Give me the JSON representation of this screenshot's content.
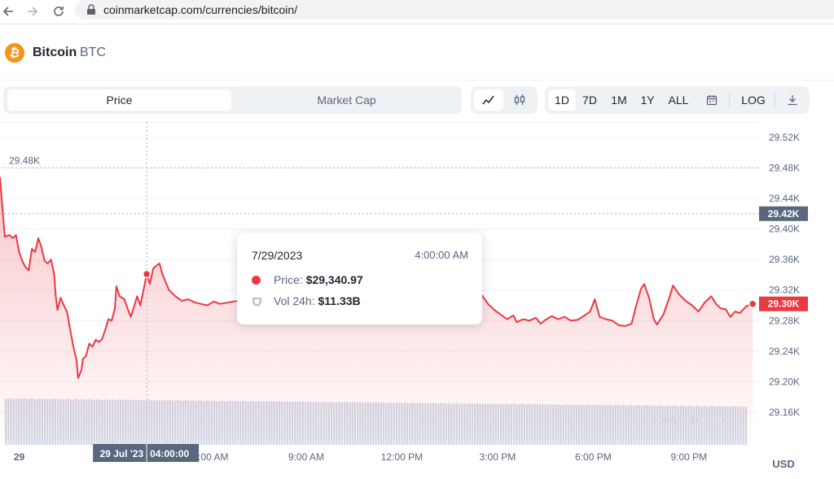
{
  "browser": {
    "url": "coinmarketcap.com/currencies/bitcoin/",
    "back_icon": "arrow-left-icon",
    "forward_icon": "arrow-right-icon",
    "reload_icon": "reload-icon",
    "lock_icon": "lock-icon"
  },
  "coin": {
    "name": "Bitcoin",
    "symbol": "BTC",
    "logo_icon": "bitcoin-logo-icon",
    "brand_color": "#f7931a"
  },
  "tabs": [
    {
      "label": "Price",
      "active": true
    },
    {
      "label": "Market Cap",
      "active": false
    }
  ],
  "chart_type_buttons": [
    {
      "icon": "line-chart-icon",
      "active": true
    },
    {
      "icon": "candlestick-icon",
      "active": false
    }
  ],
  "ranges": [
    {
      "label": "1D",
      "active": true
    },
    {
      "label": "7D",
      "active": false
    },
    {
      "label": "1M",
      "active": false
    },
    {
      "label": "1Y",
      "active": false
    },
    {
      "label": "ALL",
      "active": false
    }
  ],
  "calendar_icon": "calendar-icon",
  "log_label": "LOG",
  "download_icon": "download-icon",
  "tooltip": {
    "date": "7/29/2023",
    "time": "4:00:00 AM",
    "price_label": "Price:",
    "price_value": "$29,340.97",
    "vol_label": "Vol 24h:",
    "vol_value": "$11.33B"
  },
  "chart_data": {
    "type": "line",
    "currency": "USD",
    "watermark": "CoinMarketCap",
    "ylim": [
      29125,
      29540
    ],
    "y_ticks": [
      "29.52K",
      "29.48K",
      "29.44K",
      "29.40K",
      "29.36K",
      "29.32K",
      "29.28K",
      "29.24K",
      "29.20K",
      "29.16K"
    ],
    "x_ticks": [
      "29",
      "6:00 AM",
      "9:00 AM",
      "12:00 PM",
      "3:00 PM",
      "6:00 PM",
      "9:00 PM"
    ],
    "x_tick_hours": [
      0,
      6,
      9,
      12,
      15,
      18,
      21
    ],
    "x_range_hours": [
      -0.6,
      23.2
    ],
    "high_label": "29.48K",
    "high_value": 29480,
    "crosshair_label": "29.42K",
    "crosshair_value": 29420,
    "last_price_label": "29.30K",
    "last_price_value": 29302,
    "hover_date_label": "29 Jul '23",
    "hover_time_label": "04:00:00",
    "hover_hour": 4.0,
    "hover_price": 29340.97,
    "line_color": "#ea3943",
    "volume_color": "#cfd6e4",
    "price_series": [
      [
        -0.6,
        29468
      ],
      [
        -0.55,
        29440
      ],
      [
        -0.45,
        29390
      ],
      [
        -0.3,
        29392
      ],
      [
        -0.2,
        29388
      ],
      [
        -0.1,
        29392
      ],
      [
        0.0,
        29370
      ],
      [
        0.1,
        29358
      ],
      [
        0.2,
        29350
      ],
      [
        0.3,
        29346
      ],
      [
        0.4,
        29374
      ],
      [
        0.5,
        29370
      ],
      [
        0.55,
        29378
      ],
      [
        0.6,
        29388
      ],
      [
        0.7,
        29376
      ],
      [
        0.8,
        29358
      ],
      [
        0.9,
        29355
      ],
      [
        1.0,
        29360
      ],
      [
        1.1,
        29340
      ],
      [
        1.15,
        29312
      ],
      [
        1.2,
        29294
      ],
      [
        1.3,
        29310
      ],
      [
        1.4,
        29300
      ],
      [
        1.5,
        29292
      ],
      [
        1.6,
        29268
      ],
      [
        1.7,
        29246
      ],
      [
        1.8,
        29228
      ],
      [
        1.85,
        29205
      ],
      [
        1.95,
        29215
      ],
      [
        2.0,
        29230
      ],
      [
        2.1,
        29234
      ],
      [
        2.2,
        29250
      ],
      [
        2.3,
        29246
      ],
      [
        2.4,
        29255
      ],
      [
        2.5,
        29252
      ],
      [
        2.6,
        29256
      ],
      [
        2.7,
        29268
      ],
      [
        2.8,
        29282
      ],
      [
        2.9,
        29280
      ],
      [
        3.0,
        29296
      ],
      [
        3.05,
        29325
      ],
      [
        3.15,
        29312
      ],
      [
        3.3,
        29308
      ],
      [
        3.4,
        29296
      ],
      [
        3.5,
        29285
      ],
      [
        3.6,
        29298
      ],
      [
        3.7,
        29312
      ],
      [
        3.8,
        29300
      ],
      [
        3.9,
        29320
      ],
      [
        4.0,
        29340.97
      ],
      [
        4.1,
        29328
      ],
      [
        4.2,
        29348
      ],
      [
        4.3,
        29352
      ],
      [
        4.4,
        29355
      ],
      [
        4.5,
        29340
      ],
      [
        4.6,
        29330
      ],
      [
        4.7,
        29320
      ],
      [
        4.9,
        29312
      ],
      [
        5.1,
        29306
      ],
      [
        5.3,
        29308
      ],
      [
        5.5,
        29304
      ],
      [
        5.7,
        29302
      ],
      [
        5.9,
        29300
      ],
      [
        6.1,
        29305
      ],
      [
        6.3,
        29302
      ],
      [
        12.8,
        29350
      ],
      [
        13.0,
        29345
      ],
      [
        13.2,
        29340
      ],
      [
        13.35,
        29330
      ],
      [
        13.5,
        29328
      ],
      [
        13.7,
        29322
      ],
      [
        13.8,
        29306
      ],
      [
        13.95,
        29318
      ],
      [
        14.1,
        29313
      ],
      [
        14.3,
        29308
      ],
      [
        14.5,
        29314
      ],
      [
        14.7,
        29302
      ],
      [
        14.9,
        29294
      ],
      [
        15.1,
        29288
      ],
      [
        15.3,
        29282
      ],
      [
        15.5,
        29287
      ],
      [
        15.6,
        29278
      ],
      [
        15.8,
        29282
      ],
      [
        16.0,
        29280
      ],
      [
        16.2,
        29284
      ],
      [
        16.35,
        29276
      ],
      [
        16.5,
        29281
      ],
      [
        16.7,
        29286
      ],
      [
        16.9,
        29282
      ],
      [
        17.1,
        29285
      ],
      [
        17.3,
        29280
      ],
      [
        17.5,
        29281
      ],
      [
        17.7,
        29286
      ],
      [
        17.9,
        29292
      ],
      [
        18.05,
        29308
      ],
      [
        18.2,
        29285
      ],
      [
        18.4,
        29282
      ],
      [
        18.6,
        29280
      ],
      [
        18.8,
        29274
      ],
      [
        19.0,
        29273
      ],
      [
        19.2,
        29276
      ],
      [
        19.35,
        29300
      ],
      [
        19.5,
        29322
      ],
      [
        19.6,
        29328
      ],
      [
        19.75,
        29310
      ],
      [
        19.9,
        29282
      ],
      [
        20.0,
        29275
      ],
      [
        20.2,
        29288
      ],
      [
        20.4,
        29312
      ],
      [
        20.5,
        29326
      ],
      [
        20.7,
        29314
      ],
      [
        20.9,
        29306
      ],
      [
        21.1,
        29300
      ],
      [
        21.3,
        29292
      ],
      [
        21.5,
        29304
      ],
      [
        21.7,
        29312
      ],
      [
        21.85,
        29302
      ],
      [
        22.0,
        29296
      ],
      [
        22.15,
        29295
      ],
      [
        22.3,
        29285
      ],
      [
        22.45,
        29292
      ],
      [
        22.6,
        29290
      ],
      [
        22.8,
        29299
      ],
      [
        23.0,
        29302
      ]
    ]
  }
}
